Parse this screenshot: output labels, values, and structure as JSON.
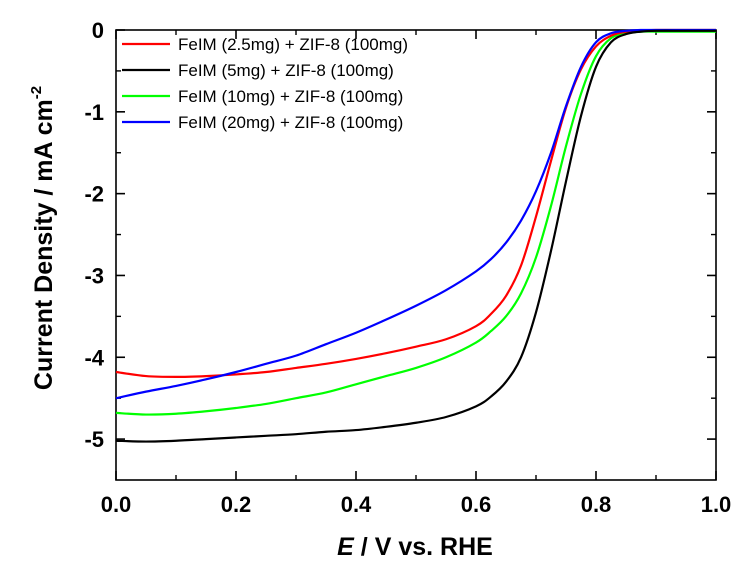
{
  "chart_data": {
    "type": "line",
    "xlabel": {
      "italic": "E",
      "rest": " / V vs. RHE"
    },
    "ylabel": {
      "main": "Current Density / mA cm",
      "sup": "-2"
    },
    "xlim": [
      0.0,
      1.0
    ],
    "ylim": [
      -5.5,
      0.0
    ],
    "xticks": [
      {
        "value": 0.0,
        "label": "0.0"
      },
      {
        "value": 0.2,
        "label": "0.2"
      },
      {
        "value": 0.4,
        "label": "0.4"
      },
      {
        "value": 0.6,
        "label": "0.6"
      },
      {
        "value": 0.8,
        "label": "0.8"
      },
      {
        "value": 1.0,
        "label": "1.0"
      }
    ],
    "yticks": [
      {
        "value": 0,
        "label": "0"
      },
      {
        "value": -1,
        "label": "-1"
      },
      {
        "value": -2,
        "label": "-2"
      },
      {
        "value": -3,
        "label": "-3"
      },
      {
        "value": -4,
        "label": "-4"
      },
      {
        "value": -5,
        "label": "-5"
      }
    ],
    "grid": false,
    "legend_position": "top-left",
    "x": [
      0.0,
      0.05,
      0.1,
      0.15,
      0.2,
      0.25,
      0.3,
      0.35,
      0.4,
      0.45,
      0.5,
      0.55,
      0.6,
      0.625,
      0.65,
      0.675,
      0.7,
      0.725,
      0.75,
      0.775,
      0.8,
      0.825,
      0.85,
      0.875,
      0.9,
      0.95,
      1.0
    ],
    "series": [
      {
        "name": "FeIM (2.5mg) + ZIF-8 (100mg)",
        "color": "#ff0000",
        "values": [
          -4.18,
          -4.23,
          -4.24,
          -4.23,
          -4.21,
          -4.18,
          -4.13,
          -4.08,
          -4.02,
          -3.95,
          -3.87,
          -3.78,
          -3.62,
          -3.47,
          -3.25,
          -2.88,
          -2.28,
          -1.6,
          -0.95,
          -0.48,
          -0.2,
          -0.07,
          -0.02,
          -0.01,
          0.0,
          0.0,
          0.0
        ]
      },
      {
        "name": "FeIM (5mg) + ZIF-8 (100mg)",
        "color": "#000000",
        "values": [
          -5.02,
          -5.03,
          -5.02,
          -5.0,
          -4.98,
          -4.96,
          -4.94,
          -4.91,
          -4.89,
          -4.85,
          -4.8,
          -4.73,
          -4.6,
          -4.48,
          -4.3,
          -4.0,
          -3.45,
          -2.7,
          -1.85,
          -1.05,
          -0.45,
          -0.15,
          -0.05,
          -0.02,
          -0.01,
          -0.01,
          -0.01
        ]
      },
      {
        "name": "FeIM (10mg) + ZIF-8 (100mg)",
        "color": "#00ff00",
        "values": [
          -4.68,
          -4.7,
          -4.69,
          -4.66,
          -4.62,
          -4.57,
          -4.5,
          -4.43,
          -4.33,
          -4.23,
          -4.13,
          -4.0,
          -3.82,
          -3.68,
          -3.5,
          -3.22,
          -2.78,
          -2.15,
          -1.42,
          -0.78,
          -0.32,
          -0.1,
          -0.04,
          -0.02,
          -0.02,
          -0.02,
          -0.02
        ]
      },
      {
        "name": "FeIM (20mg) + ZIF-8 (100mg)",
        "color": "#0000ff",
        "values": [
          -4.5,
          -4.42,
          -4.35,
          -4.27,
          -4.18,
          -4.08,
          -3.98,
          -3.84,
          -3.7,
          -3.54,
          -3.37,
          -3.18,
          -2.95,
          -2.8,
          -2.6,
          -2.33,
          -1.97,
          -1.5,
          -0.93,
          -0.45,
          -0.15,
          -0.04,
          -0.01,
          0.0,
          0.0,
          0.0,
          0.0
        ]
      }
    ]
  }
}
